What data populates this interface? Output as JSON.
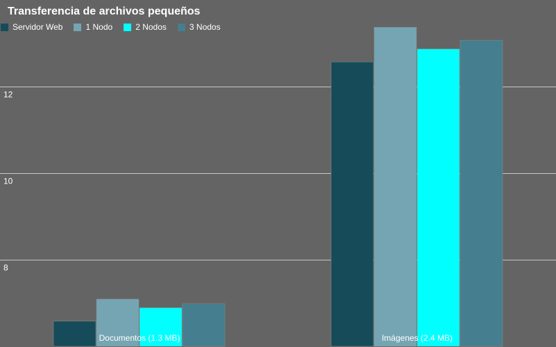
{
  "chart_data": {
    "type": "bar",
    "title": "Transferencia de archivos pequeños",
    "categories": [
      "Documentos (1.3 MB)",
      "Imágenes (2.4 MB)"
    ],
    "series": [
      {
        "name": "Servidor Web",
        "color": "#164c5a",
        "values": [
          6.58,
          12.57
        ]
      },
      {
        "name": "1 Nodo",
        "color": "#75a5b3",
        "values": [
          7.09,
          13.37
        ]
      },
      {
        "name": "2 Nodos",
        "color": "#00ffff",
        "values": [
          6.89,
          12.87
        ]
      },
      {
        "name": "3 Nodos",
        "color": "#457e8e",
        "values": [
          6.98,
          13.07
        ]
      }
    ],
    "ylim": [
      6.0,
      13.5
    ],
    "yticks": [
      8,
      10,
      12
    ],
    "grid": true,
    "legend_position": "top-left",
    "background": "#646464",
    "gridline_color": "#c8c8c8",
    "bar_outline_color": "#8c8c8c"
  }
}
